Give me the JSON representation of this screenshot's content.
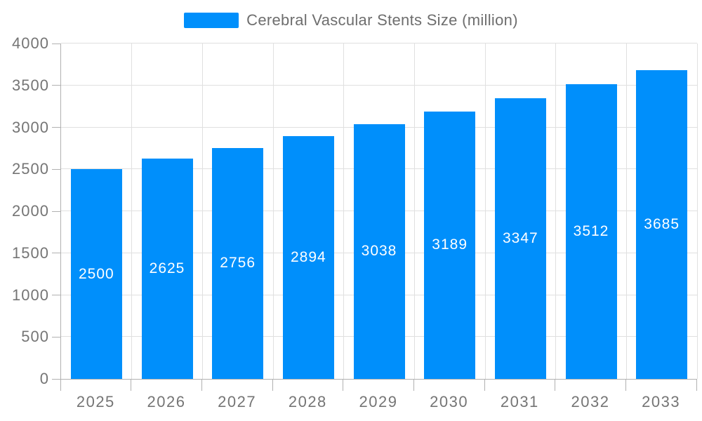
{
  "legend": {
    "label": "Cerebral Vascular Stents Size (million)",
    "swatch_color": "#008FFB"
  },
  "chart_data": {
    "type": "bar",
    "series_name": "Cerebral Vascular Stents Size (million)",
    "categories": [
      "2025",
      "2026",
      "2027",
      "2028",
      "2029",
      "2030",
      "2031",
      "2032",
      "2033"
    ],
    "values": [
      2500,
      2625,
      2756,
      2894,
      3038,
      3189,
      3347,
      3512,
      3685
    ],
    "value_labels": [
      "2500",
      "2625",
      "2756",
      "2894",
      "3038",
      "3189",
      "3347",
      "3512",
      "3685"
    ],
    "xlabel": "",
    "ylabel": "",
    "ylim": [
      0,
      4000
    ],
    "yticks": [
      0,
      500,
      1000,
      1500,
      2000,
      2500,
      3000,
      3500,
      4000
    ],
    "grid": true,
    "legend_position": "top",
    "colors": {
      "bar": "#008FFB",
      "value_label_text": "#FFFFFF",
      "gridline": "#E0E0E0",
      "axis_line": "#B1B1B1",
      "tick_label": "#757575",
      "legend_text": "#6E6E6E",
      "background": "#FFFFFF"
    }
  }
}
